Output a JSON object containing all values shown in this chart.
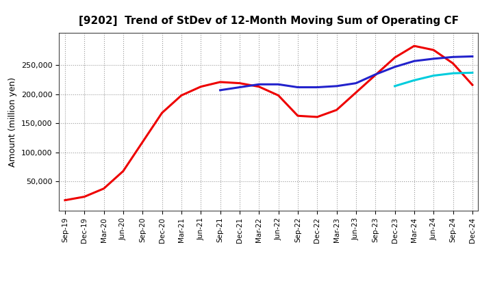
{
  "title": "[9202]  Trend of StDev of 12-Month Moving Sum of Operating CF",
  "ylabel": "Amount (million yen)",
  "background_color": "#ffffff",
  "grid_color": "#999999",
  "line_3y_color": "#ee0000",
  "line_5y_color": "#2222cc",
  "line_7y_color": "#00ccdd",
  "line_10y_color": "#008800",
  "x_labels": [
    "Sep-19",
    "Dec-19",
    "Mar-20",
    "Jun-20",
    "Sep-20",
    "Dec-20",
    "Mar-21",
    "Jun-21",
    "Sep-21",
    "Dec-21",
    "Mar-22",
    "Jun-22",
    "Sep-22",
    "Dec-22",
    "Mar-23",
    "Jun-23",
    "Sep-23",
    "Dec-23",
    "Mar-24",
    "Jun-24",
    "Sep-24",
    "Dec-24"
  ],
  "ylim": [
    0,
    305000
  ],
  "yticks": [
    50000,
    100000,
    150000,
    200000,
    250000
  ],
  "series_3y": [
    18000,
    24000,
    38000,
    68000,
    118000,
    168000,
    198000,
    213000,
    221000,
    219000,
    213000,
    198000,
    163000,
    161000,
    173000,
    203000,
    233000,
    263000,
    283000,
    276000,
    253000,
    216000
  ],
  "series_5y": [
    null,
    null,
    null,
    null,
    null,
    null,
    null,
    null,
    207000,
    212000,
    217000,
    217000,
    212000,
    212000,
    214000,
    219000,
    234000,
    247000,
    257000,
    261000,
    264000,
    265000
  ],
  "series_7y": [
    null,
    null,
    null,
    null,
    null,
    null,
    null,
    null,
    null,
    null,
    null,
    null,
    null,
    null,
    null,
    null,
    null,
    214000,
    224000,
    232000,
    236000,
    237000
  ],
  "series_10y": [
    null,
    null,
    null,
    null,
    null,
    null,
    null,
    null,
    null,
    null,
    null,
    null,
    null,
    null,
    null,
    null,
    null,
    null,
    null,
    null,
    null,
    null
  ],
  "figsize": [
    7.2,
    4.4
  ],
  "dpi": 100,
  "title_fontsize": 11,
  "ylabel_fontsize": 9,
  "tick_fontsize": 8,
  "xtick_fontsize": 7.5,
  "linewidth": 2.2
}
